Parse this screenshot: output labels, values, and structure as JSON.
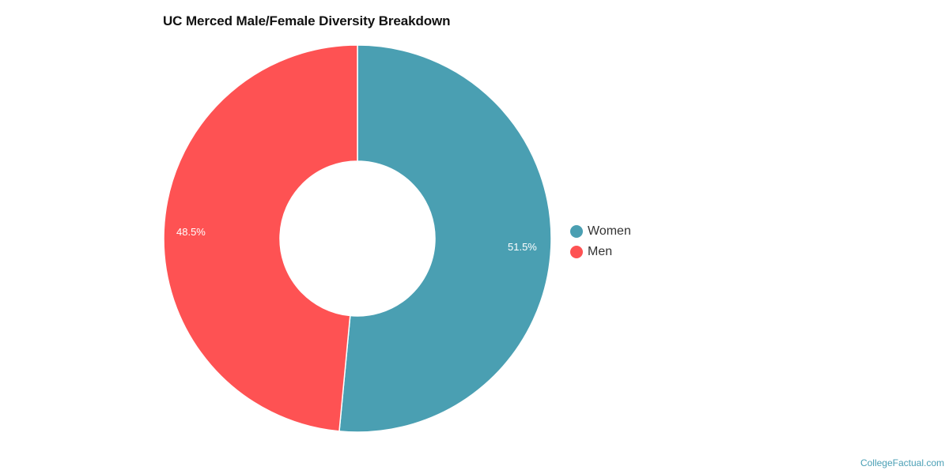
{
  "title": "UC Merced Male/Female Diversity Breakdown",
  "chart_data": {
    "type": "pie",
    "subtype": "donut",
    "title": "UC Merced Male/Female Diversity Breakdown",
    "categories": [
      "Women",
      "Men"
    ],
    "values": [
      51.5,
      48.5
    ],
    "unit": "%",
    "colors": [
      "#4a9fb2",
      "#fe5253"
    ],
    "data_labels": [
      "51.5%",
      "48.5%"
    ],
    "legend_position": "right",
    "start_angle": 0,
    "direction": "clockwise"
  },
  "legend": {
    "items": [
      {
        "label": "Women",
        "color": "#4a9fb2"
      },
      {
        "label": "Men",
        "color": "#fe5253"
      }
    ]
  },
  "labels": {
    "women": "51.5%",
    "men": "48.5%"
  },
  "credit": "CollegeFactual.com"
}
